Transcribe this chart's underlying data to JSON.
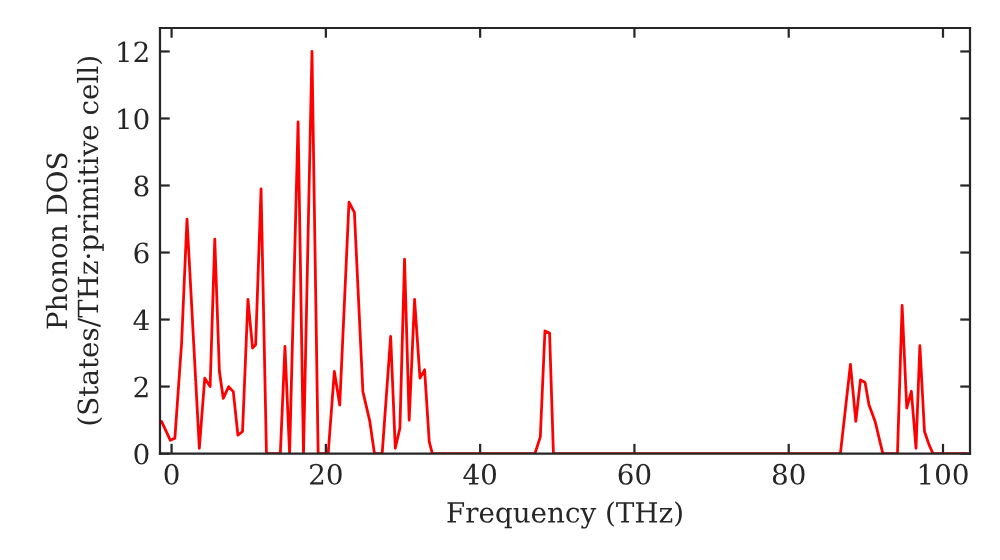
{
  "chart_data": {
    "type": "line",
    "xlabel": "Frequency (THz)",
    "ylabel": "Phonon DOS\n(States/THz·primitive cell)",
    "xlim": [
      -1.5,
      103.5
    ],
    "ylim": [
      0,
      12.7
    ],
    "xticks": [
      0,
      20,
      40,
      60,
      80,
      100
    ],
    "yticks": [
      0,
      2,
      4,
      6,
      8,
      10,
      12
    ],
    "grid": false,
    "legend": false,
    "series": [
      {
        "color": "#ff0000",
        "x": [
          -1.3,
          -0.17,
          0.43,
          1.3,
          2.0,
          3.6,
          4.3,
          5.0,
          5.6,
          6.2,
          6.7,
          7.4,
          8.0,
          8.6,
          9.2,
          9.9,
          10.5,
          10.9,
          11.6,
          12.3,
          14.1,
          14.7,
          15.3,
          16.4,
          17.1,
          18.2,
          19.0,
          20.3,
          21.1,
          21.8,
          23.0,
          23.7,
          24.8,
          25.7,
          26.3,
          27.3,
          28.4,
          29.0,
          29.6,
          30.2,
          30.8,
          31.5,
          32.2,
          32.8,
          33.4,
          33.8,
          40.5,
          47.1,
          47.8,
          48.4,
          49.0,
          49.5,
          86.7,
          88.0,
          88.7,
          89.3,
          89.9,
          90.4,
          91.2,
          92.2,
          94.1,
          94.7,
          95.3,
          95.9,
          96.5,
          97.0,
          97.6,
          98.2,
          98.7,
          103.0
        ],
        "values": [
          0.96,
          0.4,
          0.46,
          3.3,
          7.0,
          0.16,
          2.25,
          2.0,
          6.4,
          2.45,
          1.65,
          2.0,
          1.85,
          0.55,
          0.66,
          4.6,
          3.15,
          3.25,
          7.9,
          0,
          0,
          3.2,
          0,
          9.9,
          0,
          12.0,
          0,
          0,
          2.45,
          1.45,
          7.5,
          7.2,
          1.85,
          0.96,
          0,
          0,
          3.5,
          0.16,
          0.76,
          5.8,
          1.0,
          4.6,
          2.25,
          2.5,
          0.36,
          0,
          0,
          0,
          0.5,
          3.66,
          3.6,
          0,
          0,
          2.66,
          0.96,
          2.2,
          2.12,
          1.46,
          0.96,
          0,
          0,
          4.42,
          1.36,
          1.86,
          0.16,
          3.22,
          0.66,
          0.26,
          0,
          0
        ]
      }
    ]
  }
}
